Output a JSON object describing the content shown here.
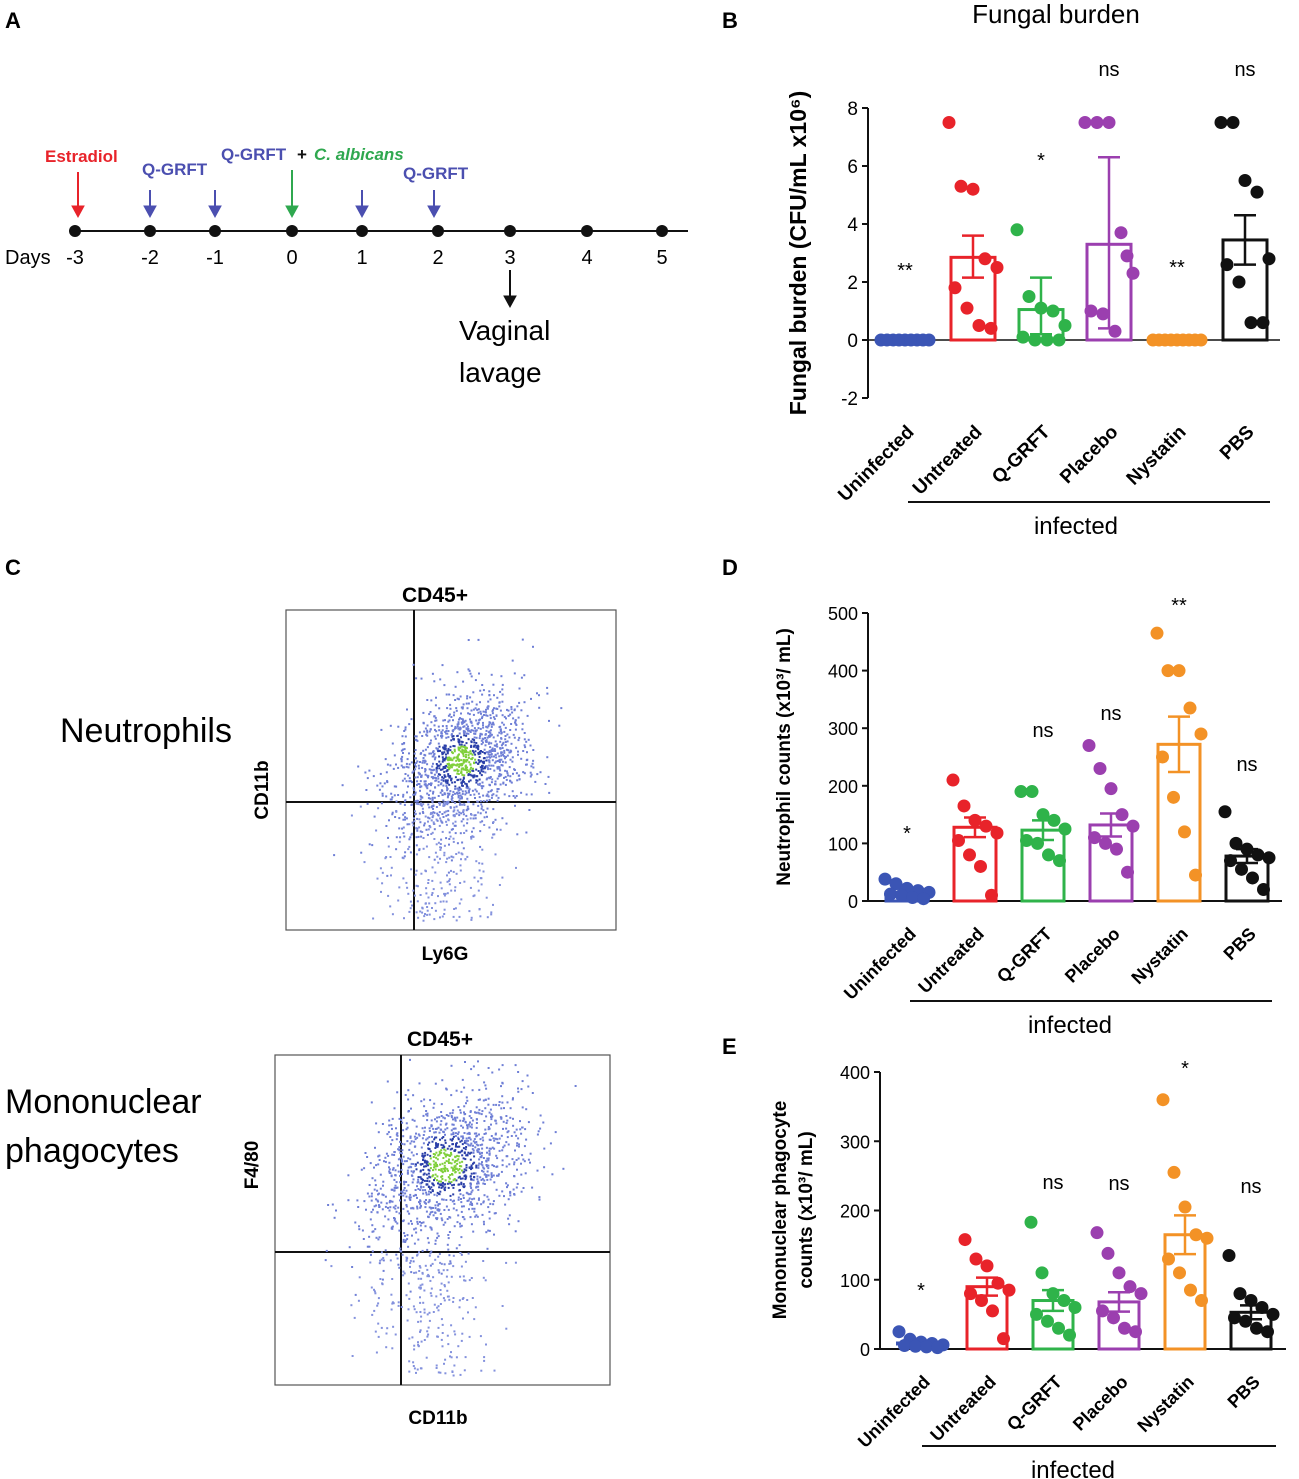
{
  "colors": {
    "red": "#e8232a",
    "blue": "#3b55b5",
    "green": "#2fb34a",
    "purple": "#9b3faf",
    "orange": "#f39226",
    "black": "#111111",
    "timeline_blue": "#4b4fb0",
    "estradiol_red": "#e8232a",
    "calbicans_green": "#2fa84f"
  },
  "panel_labels": {
    "a": "A",
    "b": "B",
    "c": "C",
    "d": "D",
    "e": "E"
  },
  "timeline": {
    "days_label": "Days",
    "days": [
      "-3",
      "-2",
      "-1",
      "0",
      "1",
      "2",
      "3",
      "4",
      "5"
    ],
    "estradiol": "Estradiol",
    "qgrft_1": "Q-GRFT",
    "qgrft_2": "Q-GRFT",
    "qgrft_plus": "+",
    "calbicans": "C. albicans",
    "qgrft_3": "Q-GRFT",
    "lavage_1": "Vaginal",
    "lavage_2": "lavage"
  },
  "flow": {
    "neutrophils_label": "Neutrophils",
    "neutrophils_title": "CD45+",
    "neutrophils_x": "Ly6G",
    "neutrophils_y": "CD11b",
    "mono_label_1": "Mononuclear",
    "mono_label_2": "phagocytes",
    "mono_title": "CD45+",
    "mono_x": "CD11b",
    "mono_y": "F4/80"
  },
  "chart_data": [
    {
      "panel": "B",
      "type": "bar",
      "title": "Fungal burden",
      "ylabel": "Fungal burden (CFU/mL x10⁶)",
      "ylim": [
        -2,
        8
      ],
      "yticks": [
        "-2",
        "0",
        "2",
        "4",
        "6",
        "8"
      ],
      "group_label": "infected",
      "categories": [
        "Uninfected",
        "Untreated",
        "Q-GRFT",
        "Placebo",
        "Nystatin",
        "PBS"
      ],
      "values": [
        0,
        2.85,
        1.05,
        3.3,
        0,
        3.45
      ],
      "error_upper": [
        0,
        3.6,
        2.15,
        6.3,
        0,
        4.3
      ],
      "error_lower": [
        0,
        2.15,
        0.2,
        0.4,
        0,
        2.6
      ],
      "significance": [
        "**",
        "",
        "*",
        "ns",
        "**",
        "ns"
      ],
      "points": [
        [
          0,
          0,
          0,
          0,
          0,
          0,
          0,
          0,
          0
        ],
        [
          7.5,
          5.3,
          5.2,
          2.8,
          2.5,
          1.8,
          1.1,
          0.5,
          0.4
        ],
        [
          3.8,
          1.5,
          1.1,
          1.0,
          0.5,
          0.1,
          0.0,
          0.0,
          0.0
        ],
        [
          7.5,
          7.5,
          7.5,
          3.7,
          2.3,
          1.0,
          0.9,
          0.3,
          2.9
        ],
        [
          0,
          0,
          0,
          0,
          0,
          0,
          0,
          0,
          0
        ],
        [
          7.5,
          7.5,
          5.5,
          5.1,
          2.8,
          2.6,
          2.0,
          0.6,
          0.6
        ]
      ]
    },
    {
      "panel": "D",
      "type": "bar",
      "ylabel": "Neutrophil counts (x10³/ mL)",
      "ylim": [
        0,
        500
      ],
      "yticks": [
        "0",
        "100",
        "200",
        "300",
        "400",
        "500"
      ],
      "group_label": "infected",
      "categories": [
        "Uninfected",
        "Untreated",
        "Q-GRFT",
        "Placebo",
        "Nystatin",
        "PBS"
      ],
      "values": [
        15,
        128,
        123,
        132,
        272,
        78
      ],
      "error_upper": [
        22,
        145,
        140,
        152,
        320,
        90
      ],
      "error_lower": [
        8,
        111,
        106,
        112,
        224,
        66
      ],
      "significance": [
        "*",
        "",
        "ns",
        "ns",
        "**",
        "ns"
      ],
      "points": [
        [
          38,
          30,
          22,
          18,
          15,
          12,
          10,
          6,
          4
        ],
        [
          210,
          165,
          140,
          130,
          118,
          105,
          80,
          60,
          10
        ],
        [
          190,
          190,
          150,
          140,
          125,
          105,
          100,
          80,
          70
        ],
        [
          270,
          230,
          195,
          150,
          130,
          110,
          100,
          90,
          50
        ],
        [
          465,
          400,
          400,
          335,
          290,
          250,
          180,
          120,
          45
        ],
        [
          155,
          100,
          90,
          80,
          75,
          70,
          55,
          40,
          20
        ]
      ]
    },
    {
      "panel": "E",
      "type": "bar",
      "ylabel_1": "Mononuclear phagocyte",
      "ylabel_2": "counts (x10³/ mL)",
      "ylim": [
        0,
        400
      ],
      "yticks": [
        "0",
        "100",
        "200",
        "300",
        "400"
      ],
      "group_label": "infected",
      "categories": [
        "Uninfected",
        "Untreated",
        "Q-GRFT",
        "Placebo",
        "Nystatin",
        "PBS"
      ],
      "values": [
        8,
        90,
        70,
        68,
        165,
        53
      ],
      "error_upper": [
        12,
        103,
        85,
        82,
        193,
        63
      ],
      "error_lower": [
        4,
        77,
        55,
        54,
        137,
        43
      ],
      "significance": [
        "*",
        "",
        "ns",
        "ns",
        "*",
        "ns"
      ],
      "points": [
        [
          25,
          14,
          10,
          8,
          6,
          5,
          4,
          3,
          2
        ],
        [
          158,
          130,
          120,
          95,
          85,
          80,
          70,
          55,
          15
        ],
        [
          183,
          110,
          80,
          70,
          60,
          50,
          40,
          30,
          20
        ],
        [
          168,
          138,
          110,
          90,
          80,
          55,
          45,
          30,
          25
        ],
        [
          360,
          255,
          205,
          165,
          160,
          130,
          110,
          85,
          70
        ],
        [
          135,
          80,
          70,
          60,
          50,
          45,
          40,
          30,
          25
        ]
      ]
    }
  ]
}
